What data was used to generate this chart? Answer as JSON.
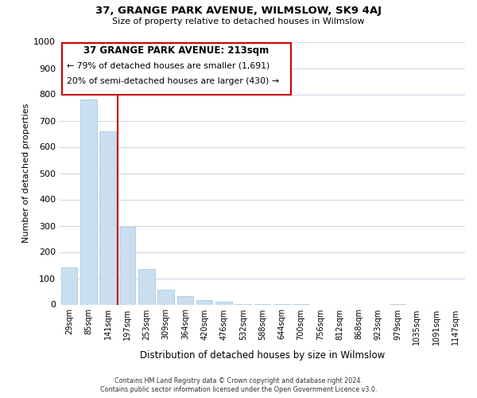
{
  "title": "37, GRANGE PARK AVENUE, WILMSLOW, SK9 4AJ",
  "subtitle": "Size of property relative to detached houses in Wilmslow",
  "xlabel": "Distribution of detached houses by size in Wilmslow",
  "ylabel": "Number of detached properties",
  "bar_labels": [
    "29sqm",
    "85sqm",
    "141sqm",
    "197sqm",
    "253sqm",
    "309sqm",
    "364sqm",
    "420sqm",
    "476sqm",
    "532sqm",
    "588sqm",
    "644sqm",
    "700sqm",
    "756sqm",
    "812sqm",
    "868sqm",
    "923sqm",
    "979sqm",
    "1035sqm",
    "1091sqm",
    "1147sqm"
  ],
  "bar_values": [
    140,
    780,
    660,
    295,
    135,
    55,
    32,
    18,
    10,
    3,
    2,
    1,
    1,
    0,
    0,
    0,
    0,
    1,
    0,
    0,
    0
  ],
  "bar_color": "#c9dff0",
  "bar_edge_color": "#aac8e0",
  "vline_color": "#cc0000",
  "vline_index": 2.5,
  "annotation_title": "37 GRANGE PARK AVENUE: 213sqm",
  "annotation_line1": "← 79% of detached houses are smaller (1,691)",
  "annotation_line2": "20% of semi-detached houses are larger (430) →",
  "annotation_box_color": "#ffffff",
  "annotation_box_edge": "#cc0000",
  "footer_line1": "Contains HM Land Registry data © Crown copyright and database right 2024.",
  "footer_line2": "Contains public sector information licensed under the Open Government Licence v3.0.",
  "ylim": [
    0,
    1000
  ],
  "background_color": "#ffffff",
  "grid_color": "#d0d8e8"
}
